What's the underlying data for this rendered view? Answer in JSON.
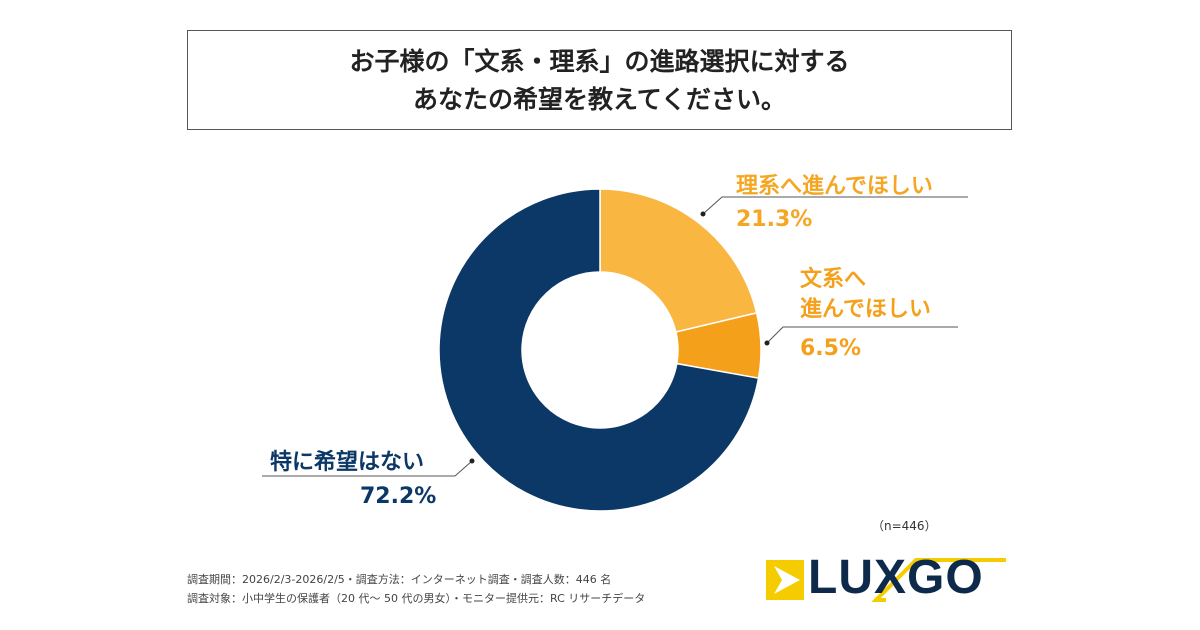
{
  "title": {
    "line1": "お子様の「文系・理系」の進路選択に対する",
    "line2": "あなたの希望を教えてください。"
  },
  "chart_data": {
    "type": "pie",
    "donut": true,
    "start": "top, clockwise",
    "slices": [
      {
        "label": "理系へ進んでほしい",
        "value": 21.3,
        "display": "21.3%",
        "color": "#F9B640"
      },
      {
        "label": "文系へ進んでほしい",
        "label_lines": [
          "文系へ",
          "進んでほしい"
        ],
        "value": 6.5,
        "display": "6.5%",
        "color": "#F5A01B"
      },
      {
        "label": "特に希望はない",
        "value": 72.2,
        "display": "72.2%",
        "color": "#0B3866"
      }
    ]
  },
  "sample": "（n=446）",
  "footer": {
    "line1": "調査期間：2026/2/3-2026/2/5・調査方法：インターネット調査・調査人数：446 名",
    "line2": "調査対象：小中学生の保護者（20 代～ 50 代の男女）・モニター提供元：RC リサーチデータ"
  },
  "logo": {
    "text": "LUXGO",
    "colors": {
      "accent": "#F5CC00",
      "text": "#0D2A4A"
    }
  }
}
